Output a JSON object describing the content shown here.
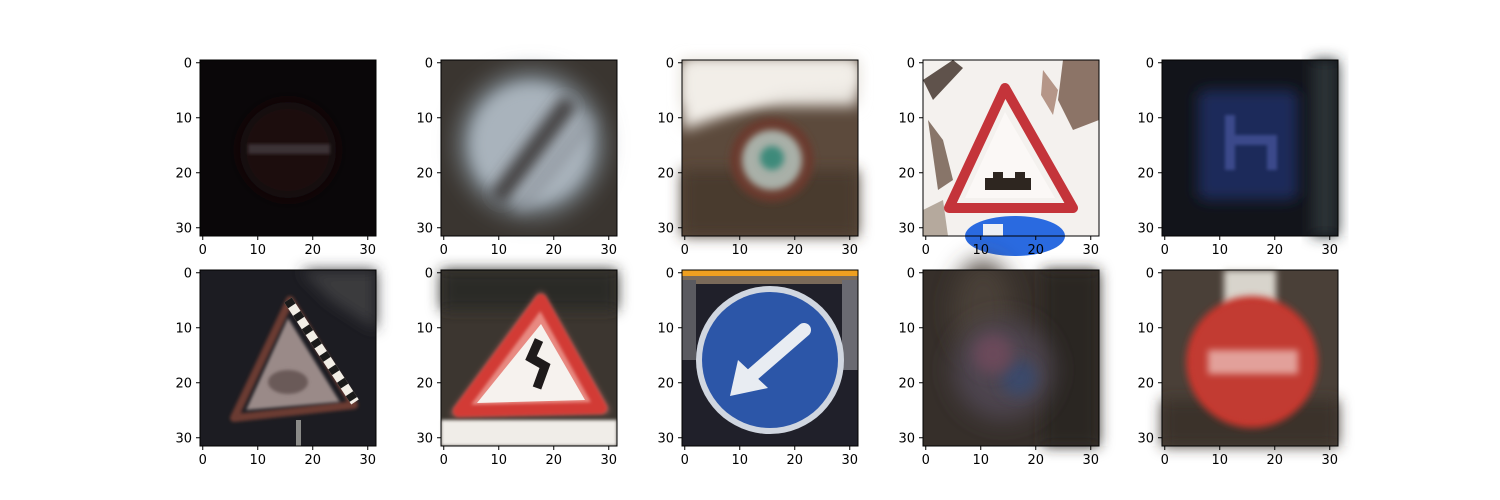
{
  "figure": {
    "background": "#ffffff",
    "axis_color": "#000000",
    "x_tick_labels": [
      "0",
      "10",
      "20",
      "30"
    ],
    "y_tick_labels": [
      "0",
      "10",
      "20",
      "30"
    ]
  },
  "panels": [
    {
      "id": "r0c0",
      "depicts": "very dark no-entry sign",
      "background": "#0a0709"
    },
    {
      "id": "r0c1",
      "depicts": "blurry end-of-restriction sign",
      "background": "#4a4440"
    },
    {
      "id": "r0c2",
      "depicts": "round sign with green center",
      "background": "#5c4a3c"
    },
    {
      "id": "r0c3",
      "depicts": "triangular uneven-road warning sign",
      "background": "#f4f1ee"
    },
    {
      "id": "r0c4",
      "depicts": "dark blue directional sign",
      "background": "#12141a"
    },
    {
      "id": "r1c0",
      "depicts": "triangular warning sign with bright diagonal stripe",
      "background": "#1c1c22"
    },
    {
      "id": "r1c1",
      "depicts": "triangular double-curve warning sign",
      "background": "#3c3630"
    },
    {
      "id": "r1c2",
      "depicts": "blue keep-left arrow sign",
      "background": "#20202a"
    },
    {
      "id": "r1c3",
      "depicts": "very blurry unclear sign",
      "background": "#362f2a"
    },
    {
      "id": "r1c4",
      "depicts": "red stop sign",
      "background": "#4a4038"
    }
  ]
}
